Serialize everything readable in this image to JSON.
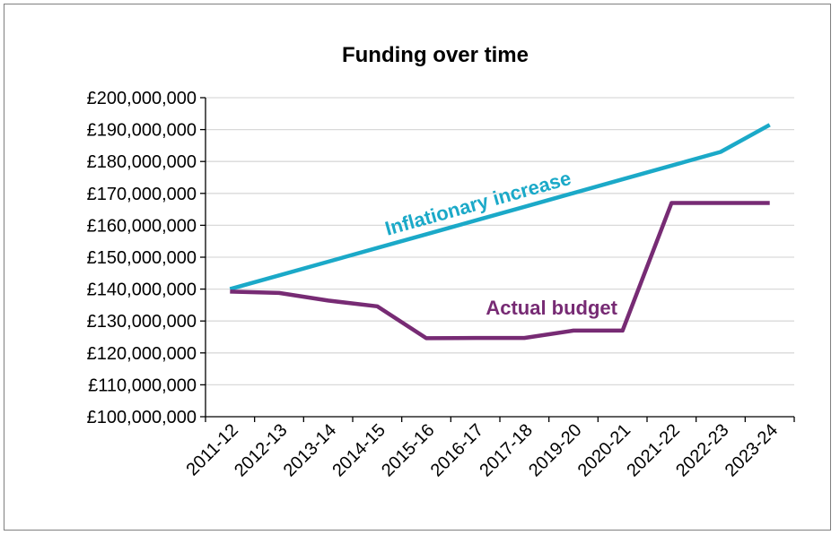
{
  "chart_data": {
    "type": "line",
    "title": "Funding over time",
    "xlabel": "",
    "ylabel": "",
    "categories": [
      "2011-12",
      "2012-13",
      "2013-14",
      "2014-15",
      "2015-16",
      "2016-17",
      "2017-18",
      "2019-20",
      "2020-21",
      "2021-22",
      "2022-23",
      "2023-24"
    ],
    "y_ticks": [
      "£100,000,000",
      "£110,000,000",
      "£120,000,000",
      "£130,000,000",
      "£140,000,000",
      "£150,000,000",
      "£160,000,000",
      "£170,000,000",
      "£180,000,000",
      "£190,000,000",
      "£200,000,000"
    ],
    "ylim": [
      100000000,
      200000000
    ],
    "grid": true,
    "legend": "none",
    "series": [
      {
        "name": "Inflationary increase",
        "color": "#1BA9C8",
        "values": [
          140000000,
          144300000,
          148600000,
          152900000,
          157200000,
          161500000,
          165800000,
          170100000,
          174400000,
          178700000,
          183000000,
          191500000
        ]
      },
      {
        "name": "Actual budget",
        "color": "#772B74",
        "values": [
          139200000,
          138800000,
          136400000,
          134600000,
          124600000,
          124700000,
          124700000,
          127000000,
          127000000,
          167000000,
          167000000,
          167000000
        ]
      }
    ]
  }
}
